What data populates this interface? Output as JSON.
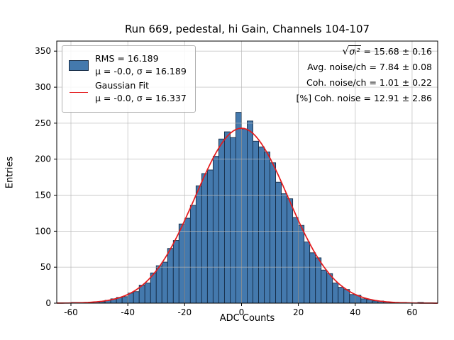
{
  "title": "Run 669, pedestal, hi Gain, Channels 104-107",
  "xlabel": "ADC Counts",
  "ylabel": "Entries",
  "legend": {
    "entries": [
      {
        "swatch": "histogram-patch",
        "line1": "RMS = 16.189",
        "line2": "μ = -0.0, σ = 16.189"
      },
      {
        "swatch": "fit-line",
        "line1": "Gaussian Fit",
        "line2": "μ = -0.0, σ = 16.337"
      }
    ]
  },
  "annotations": {
    "sqrt": {
      "radical": "√",
      "expr": "σᵢ²",
      "value": " = 15.68 ± 0.16"
    },
    "lines": [
      "Avg. noise/ch = 7.84 ± 0.08",
      "Coh. noise/ch = 1.01 ± 0.22",
      "[%] Coh. noise = 12.91 ± 2.86"
    ]
  },
  "chart_data": {
    "type": "bar",
    "subtype": "histogram-with-gaussian-fit",
    "title": "Run 669, pedestal, hi Gain, Channels 104-107",
    "xlabel": "ADC Counts",
    "ylabel": "Entries",
    "xlim": [
      -65,
      69
    ],
    "ylim": [
      0,
      364
    ],
    "xticks": [
      -60,
      -40,
      -20,
      0,
      20,
      40,
      60
    ],
    "yticks": [
      0,
      50,
      100,
      150,
      200,
      250,
      300,
      350
    ],
    "grid": true,
    "legend_position": "upper left",
    "bin_start": -60,
    "bin_width": 2,
    "counts": [
      1,
      1,
      0,
      1,
      2,
      2,
      4,
      6,
      8,
      9,
      14,
      16,
      25,
      28,
      42,
      52,
      57,
      76,
      87,
      110,
      118,
      136,
      163,
      180,
      185,
      204,
      228,
      238,
      230,
      265,
      242,
      253,
      225,
      217,
      210,
      195,
      168,
      152,
      145,
      119,
      108,
      85,
      70,
      63,
      46,
      41,
      28,
      22,
      19,
      12,
      11,
      6,
      5,
      3,
      3,
      2,
      1,
      0,
      1,
      0,
      0,
      1,
      0
    ],
    "histogram_stats": {
      "rms": 16.189,
      "mu": -0.0,
      "sigma": 16.189
    },
    "gaussian": {
      "amplitude": 243,
      "mu": -0.0,
      "sigma": 16.337
    },
    "derived_quantities": {
      "sqrt_sigma_i_sq": "15.68 ± 0.16",
      "avg_noise_per_ch": "7.84 ± 0.08",
      "coh_noise_per_ch": "1.01 ± 0.22",
      "pct_coh_noise": "12.91 ± 2.86"
    },
    "colors": {
      "bar_fill": "#4479ad",
      "bar_edge": "#152c47",
      "fit_line": "#e41a1c",
      "grid": "#b8b8b8",
      "axes": "#000000"
    }
  }
}
